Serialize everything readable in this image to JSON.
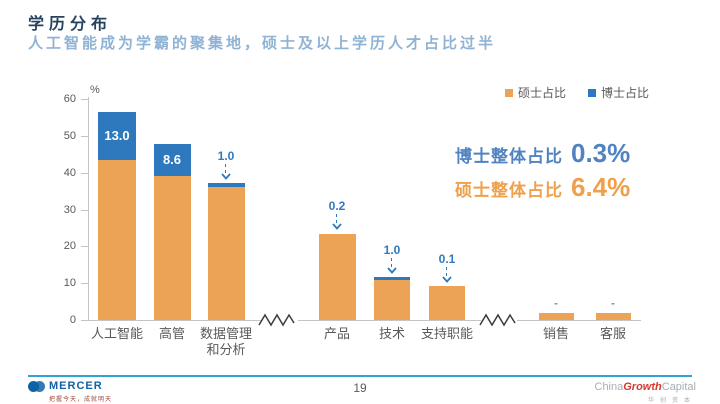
{
  "header": {
    "title": "学历分布",
    "subtitle": "人工智能成为学霸的聚集地，硕士及以上学历人才占比过半"
  },
  "legend": {
    "items": [
      {
        "label": "硕士占比",
        "color": "#EDA355"
      },
      {
        "label": "博士占比",
        "color": "#2E79BE"
      }
    ]
  },
  "chart_data": {
    "type": "bar",
    "stacked": true,
    "title": "学历分布",
    "xlabel": "",
    "ylabel": "%",
    "ylim": [
      0,
      60
    ],
    "yticks": [
      0,
      10,
      20,
      30,
      40,
      50,
      60
    ],
    "grid": false,
    "legend_position": "top-right",
    "series_names": [
      "硕士占比",
      "博士占比"
    ],
    "groups": [
      {
        "label": "人工智能",
        "masters_pct": 43.5,
        "phd_pct": 13.0,
        "phd_display": "13.0",
        "phd_label_style": "inside"
      },
      {
        "label": "高管",
        "masters_pct": 39.2,
        "phd_pct": 8.6,
        "phd_display": "8.6",
        "phd_label_style": "inside"
      },
      {
        "label": "数据管理\n和分析",
        "masters_pct": 36.2,
        "phd_pct": 1.0,
        "phd_display": "1.0",
        "phd_label_style": "arrow"
      },
      {
        "label": "产品",
        "masters_pct": 23.4,
        "phd_pct": 0.2,
        "phd_display": "0.2",
        "phd_label_style": "arrow"
      },
      {
        "label": "技术",
        "masters_pct": 10.8,
        "phd_pct": 1.0,
        "phd_display": "1.0",
        "phd_label_style": "arrow"
      },
      {
        "label": "支持职能",
        "masters_pct": 9.1,
        "phd_pct": 0.1,
        "phd_display": "0.1",
        "phd_label_style": "arrow"
      },
      {
        "label": "销售",
        "masters_pct": 2.0,
        "phd_pct": null,
        "phd_display": "-",
        "phd_label_style": "dash"
      },
      {
        "label": "客服",
        "masters_pct": 2.0,
        "phd_pct": null,
        "phd_display": "-",
        "phd_label_style": "dash"
      }
    ],
    "axis_breaks_after_group_index": [
      2,
      5
    ]
  },
  "annotations": [
    {
      "label": "博士整体占比",
      "value": "0.3%",
      "color": "#5083C0"
    },
    {
      "label": "硕士整体占比",
      "value": "6.4%",
      "color": "#EFA04A"
    }
  ],
  "colors": {
    "masters_orange": "#EDA355",
    "phd_blue": "#2E79BE",
    "title_navy": "#27425F",
    "subtitle_blue": "#8FB3D4",
    "axis_text_gray": "#595959",
    "axis_line_gray": "#C4C4C4",
    "footer_line_blue": "#2FA2D6",
    "mercer_blue": "#1062A6",
    "growth_red": "#D13B30"
  },
  "footer": {
    "mercer_name": "MERCER",
    "mercer_tagline": "把握今天，成就明天",
    "page": "19",
    "cgc_parts": [
      "China",
      "Growth",
      "Capital"
    ],
    "cgc_cn": "华创资本"
  }
}
